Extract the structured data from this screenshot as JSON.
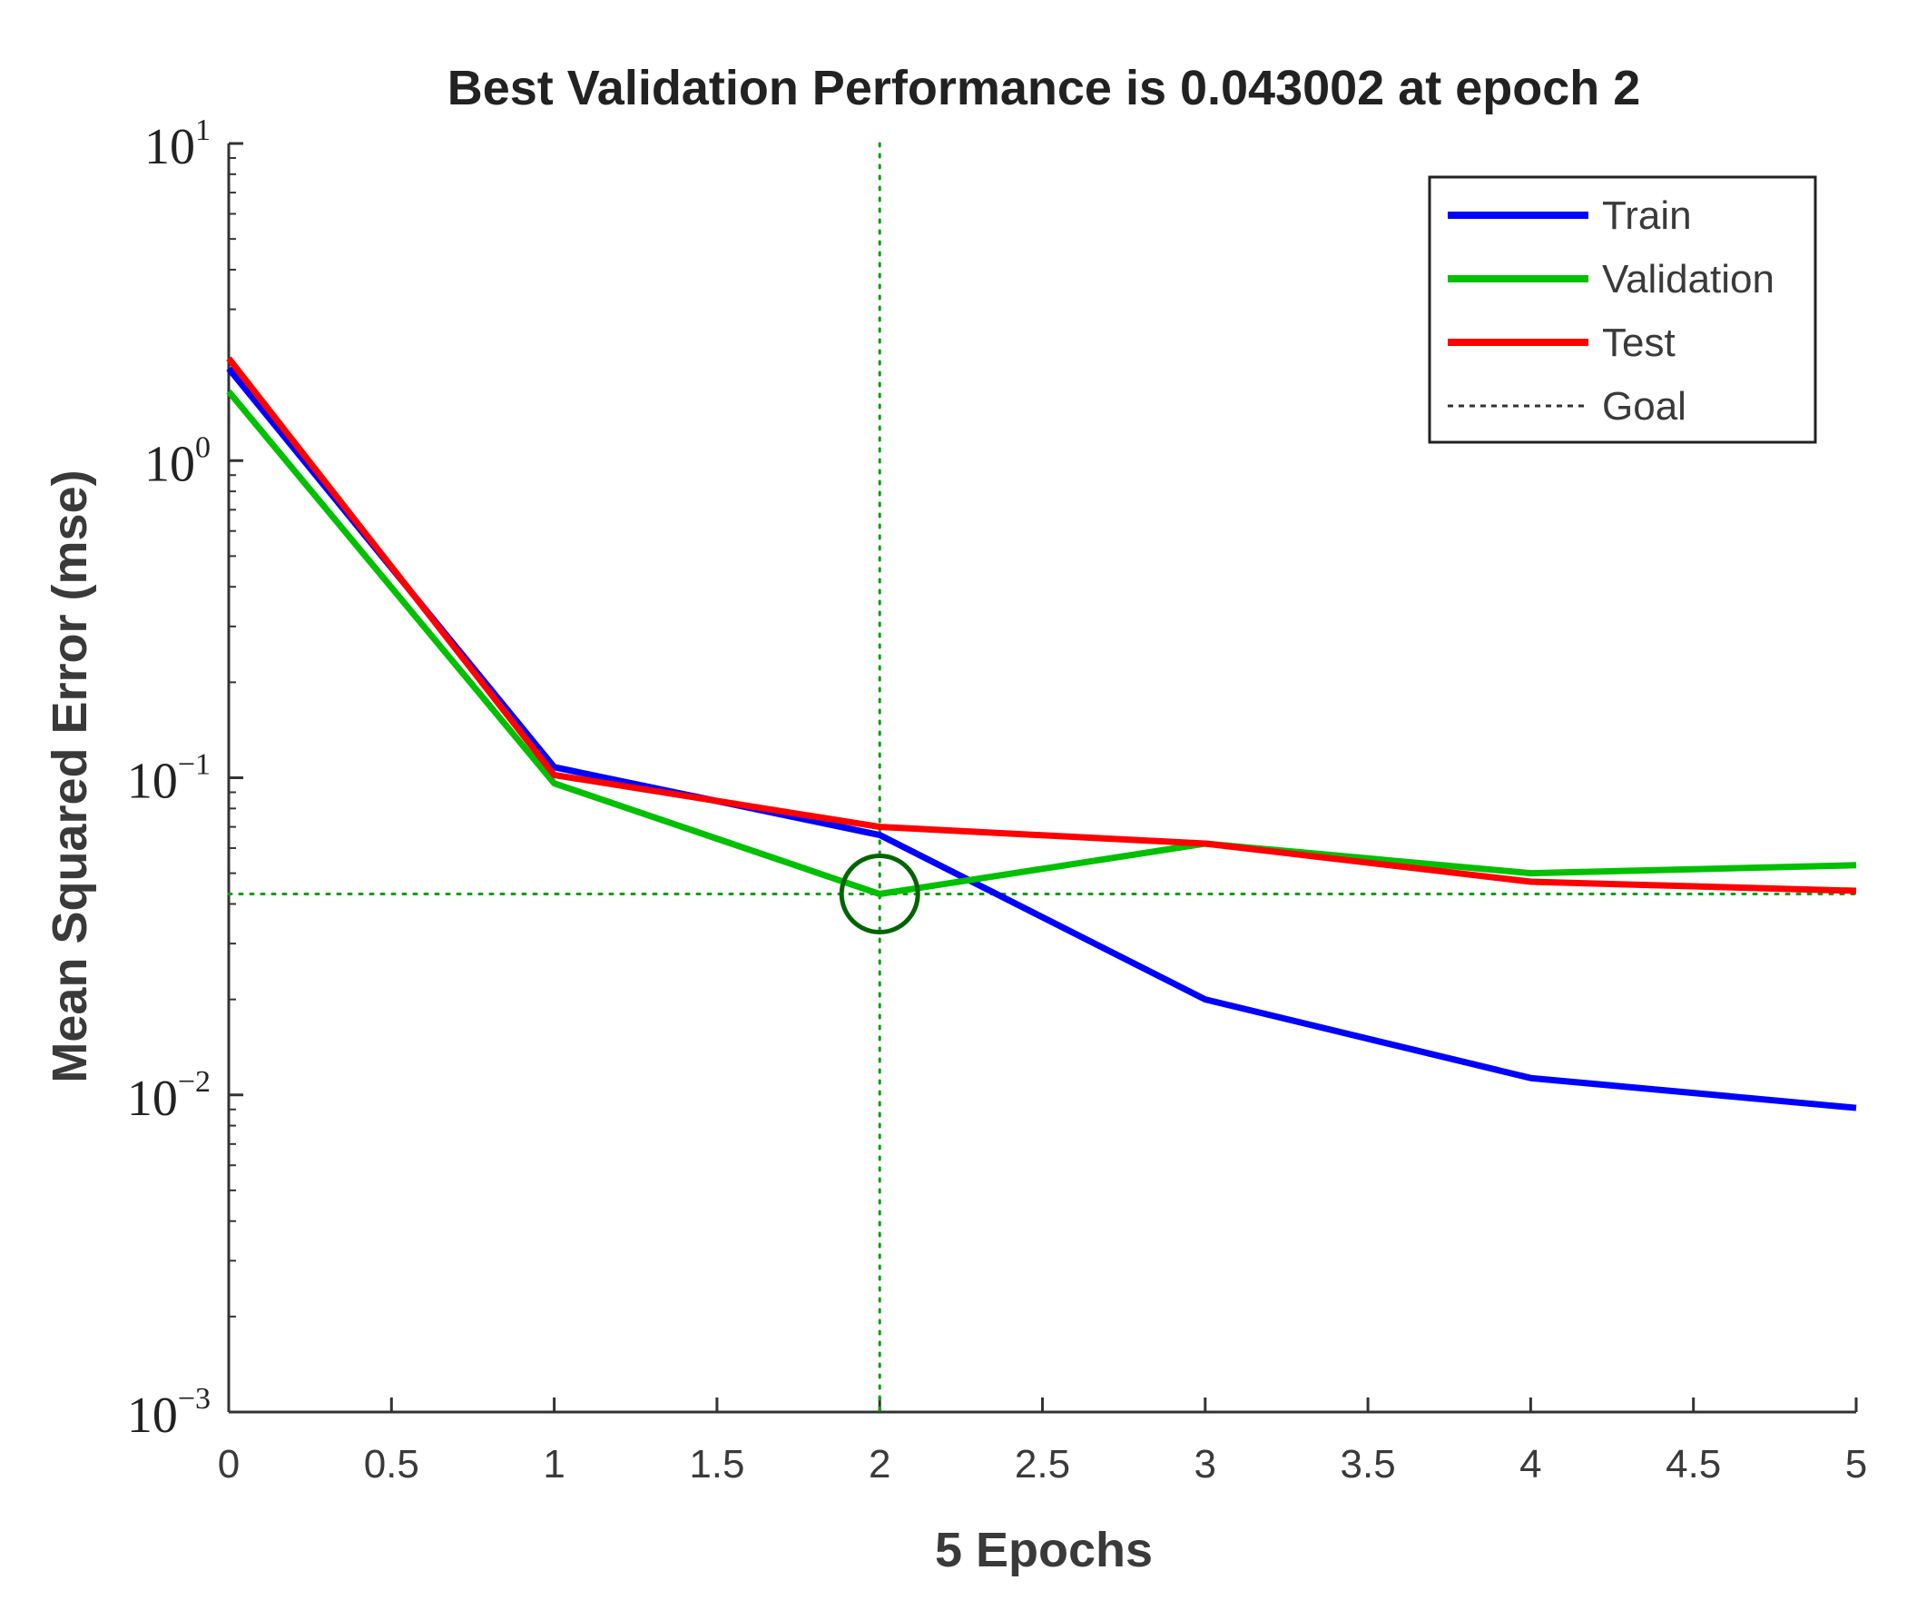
{
  "chart_data": {
    "type": "line",
    "title": "Best Validation Performance is 0.043002 at epoch 2",
    "xlabel": "5 Epochs",
    "ylabel": "Mean Squared Error  (mse)",
    "xscale": "linear",
    "yscale": "log",
    "xlim": [
      0,
      5
    ],
    "ylim": [
      0.001,
      10
    ],
    "x_ticks": [
      0,
      0.5,
      1,
      1.5,
      2,
      2.5,
      3,
      3.5,
      4,
      4.5,
      5
    ],
    "x_tick_labels": [
      "0",
      "0.5",
      "1",
      "1.5",
      "2",
      "2.5",
      "3",
      "3.5",
      "4",
      "4.5",
      "5"
    ],
    "y_ticks": [
      {
        "value": 10,
        "base": "10",
        "exp": "1"
      },
      {
        "value": 1,
        "base": "10",
        "exp": "0"
      },
      {
        "value": 0.1,
        "base": "10",
        "exp": "−1"
      },
      {
        "value": 0.01,
        "base": "10",
        "exp": "−2"
      },
      {
        "value": 0.001,
        "base": "10",
        "exp": "−3"
      }
    ],
    "x": [
      0,
      1,
      2,
      3,
      4,
      5
    ],
    "series": [
      {
        "name": "Train",
        "color": "#0000ff",
        "values": [
          1.95,
          0.108,
          0.066,
          0.02,
          0.0113,
          0.0091
        ]
      },
      {
        "name": "Validation",
        "color": "#00c000",
        "values": [
          1.65,
          0.096,
          0.043002,
          0.062,
          0.05,
          0.053
        ]
      },
      {
        "name": "Test",
        "color": "#ff0000",
        "values": [
          2.1,
          0.102,
          0.07,
          0.062,
          0.047,
          0.044
        ]
      }
    ],
    "goal": {
      "name": "Goal",
      "color": "#333333"
    },
    "best": {
      "epoch": 2,
      "value": 0.043002,
      "color": "#006400",
      "guide_color": "#00a000"
    },
    "legend": {
      "position": "top-right",
      "entries": [
        "Train",
        "Validation",
        "Test",
        "Goal"
      ]
    }
  }
}
